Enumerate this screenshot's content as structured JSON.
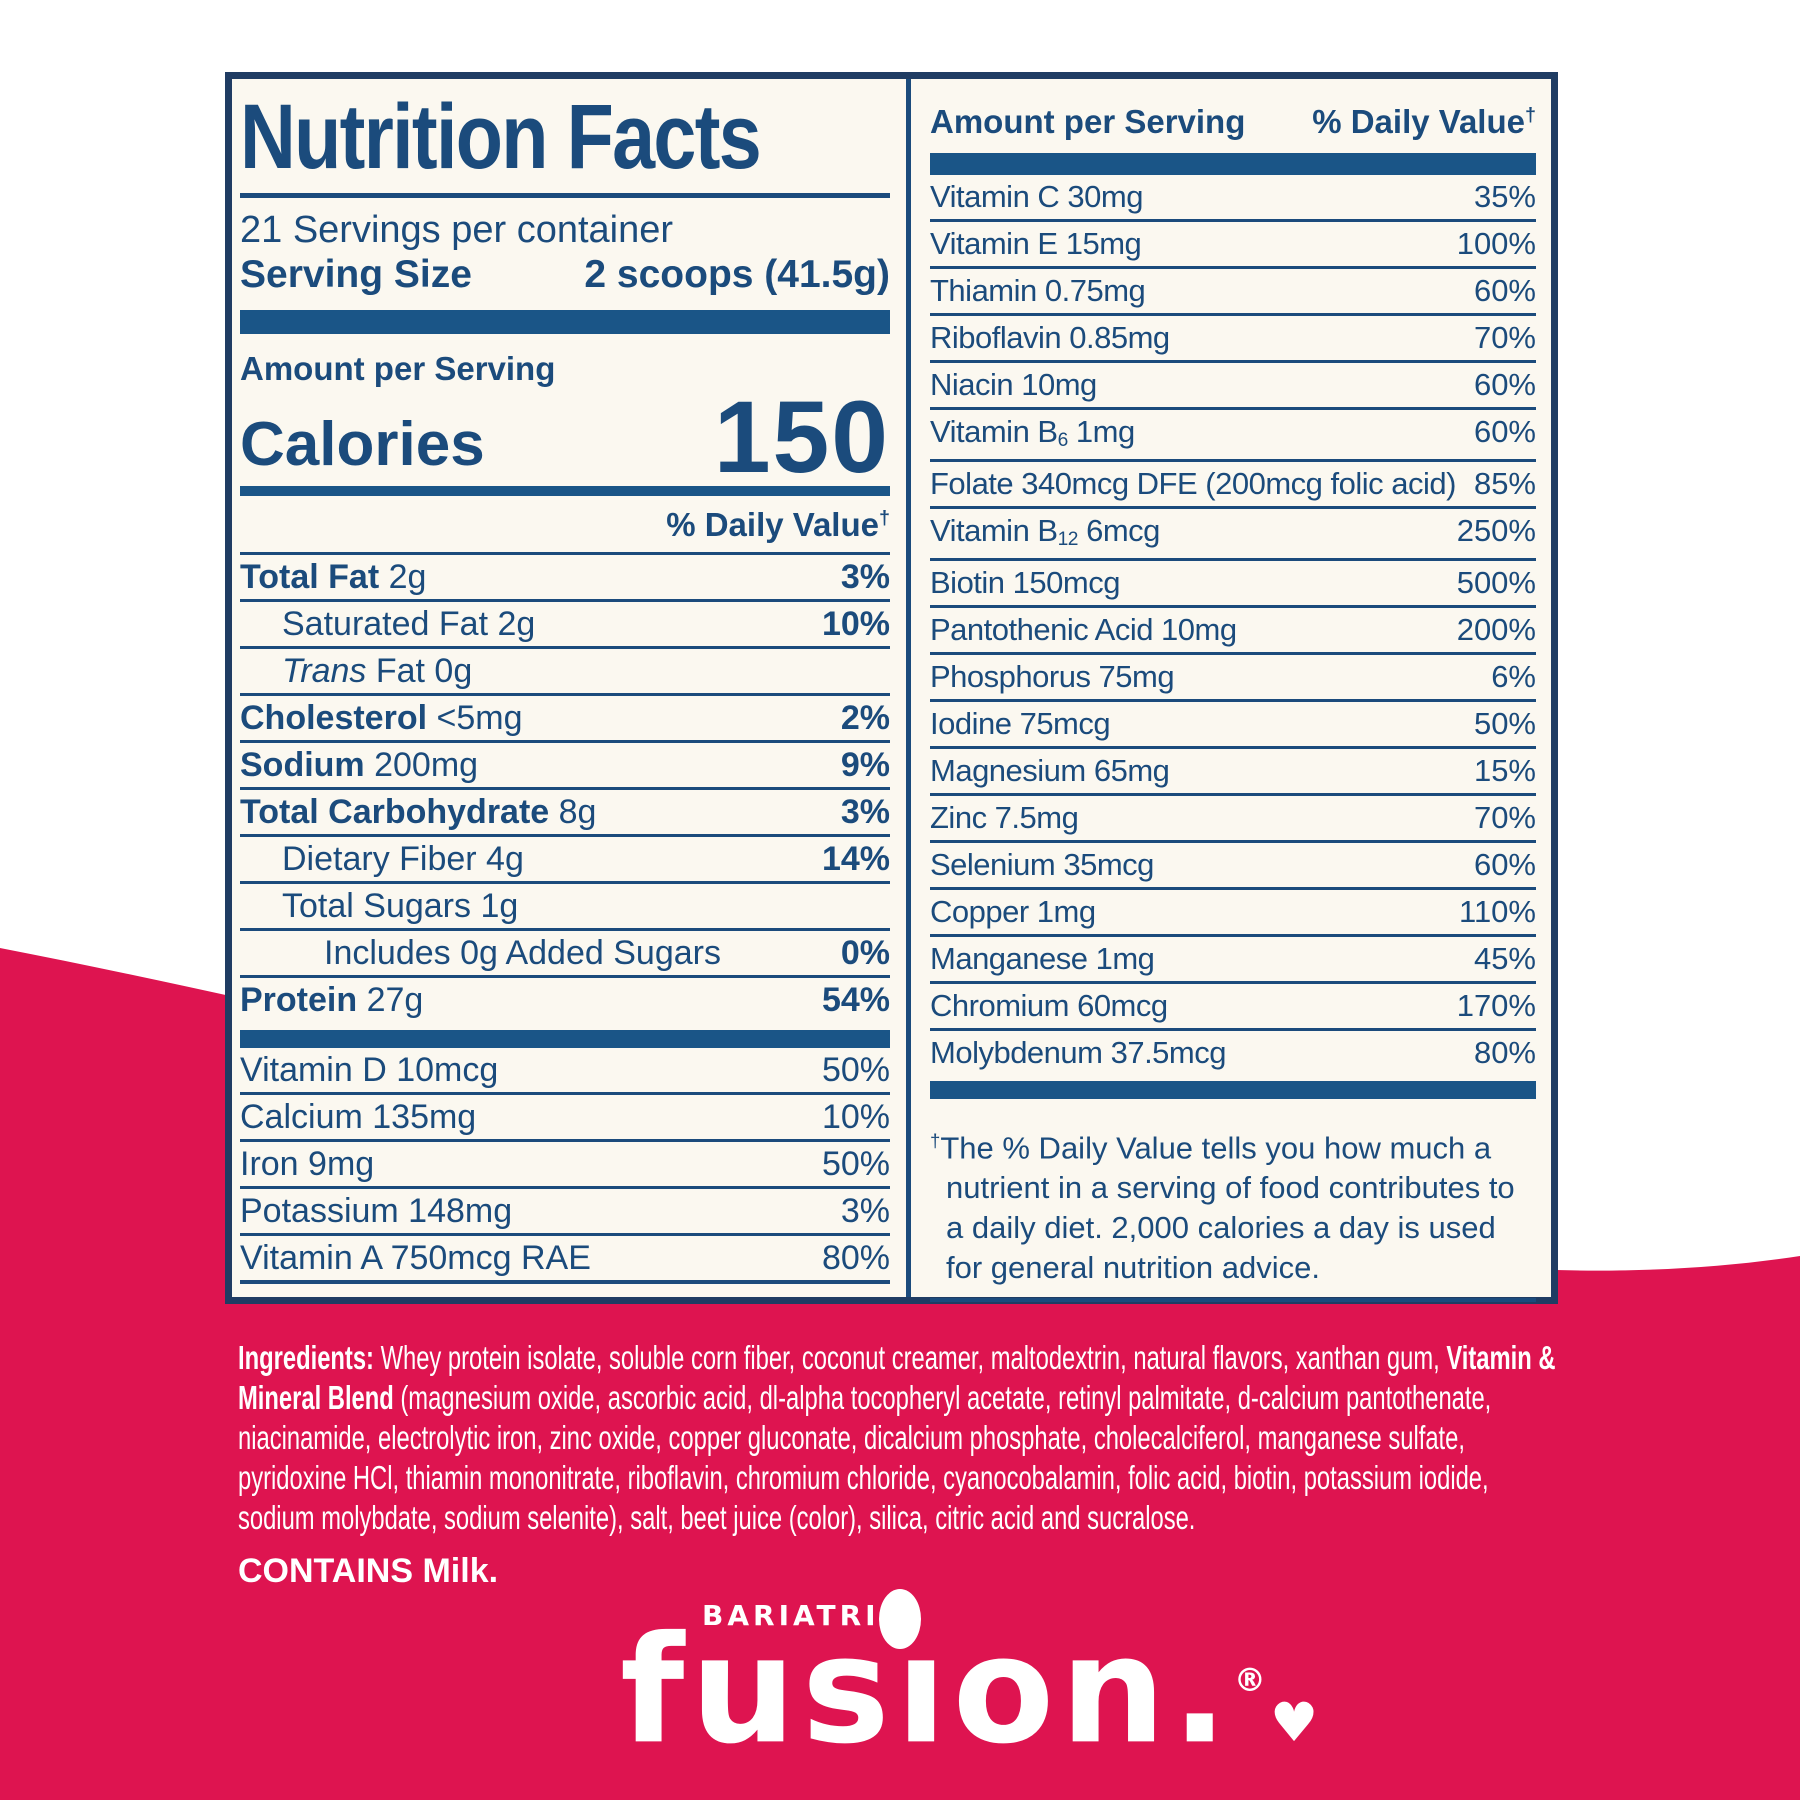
{
  "colors": {
    "blue_text": "#1b4b7c",
    "blue_bar": "#1a5587",
    "navy_border": "#1f3c63",
    "pink": "#de1450",
    "label_bg": "#fbf8f0",
    "white": "#ffffff"
  },
  "panel": {
    "title": "Nutrition Facts",
    "servings": "21 Servings per container",
    "serving_size": {
      "label": "Serving Size",
      "value": "2 scoops (41.5g)"
    },
    "amount_per_serving": "Amount per Serving",
    "calories": {
      "label": "Calories",
      "value": "150"
    },
    "daily_value": {
      "prefix": "% Daily Value",
      "dagger": "†"
    },
    "left_rows": [
      {
        "parts": [
          {
            "t": "Total Fat ",
            "s": "b"
          },
          {
            "t": "2g",
            "s": "r"
          }
        ],
        "pct": "3%",
        "pb": true
      },
      {
        "parts": [
          {
            "t": "Saturated Fat 2g",
            "s": "r"
          }
        ],
        "pct": "10%",
        "pb": true,
        "ind": 1
      },
      {
        "parts": [
          {
            "t": "Trans ",
            "s": "i"
          },
          {
            "t": "Fat 0g",
            "s": "r"
          }
        ],
        "pct": "",
        "ind": 1
      },
      {
        "parts": [
          {
            "t": "Cholesterol ",
            "s": "b"
          },
          {
            "t": "<5mg",
            "s": "r"
          }
        ],
        "pct": "2%",
        "pb": true
      },
      {
        "parts": [
          {
            "t": "Sodium ",
            "s": "b"
          },
          {
            "t": "200mg",
            "s": "r"
          }
        ],
        "pct": "9%",
        "pb": true
      },
      {
        "parts": [
          {
            "t": "Total Carbohydrate ",
            "s": "b"
          },
          {
            "t": "8g",
            "s": "r"
          }
        ],
        "pct": "3%",
        "pb": true
      },
      {
        "parts": [
          {
            "t": "Dietary Fiber 4g",
            "s": "r"
          }
        ],
        "pct": "14%",
        "pb": true,
        "ind": 1
      },
      {
        "parts": [
          {
            "t": "Total Sugars 1g",
            "s": "r"
          }
        ],
        "pct": "",
        "ind": 1
      },
      {
        "parts": [
          {
            "t": "Includes 0g Added Sugars",
            "s": "r"
          }
        ],
        "pct": "0%",
        "pb": true,
        "ind": 2
      },
      {
        "parts": [
          {
            "t": "Protein ",
            "s": "b"
          },
          {
            "t": "27g",
            "s": "r"
          }
        ],
        "pct": "54%",
        "pb": true
      }
    ],
    "left_vitamin_rows": [
      {
        "parts": [
          {
            "t": "Vitamin D 10mcg",
            "s": "r"
          }
        ],
        "pct": "50%"
      },
      {
        "parts": [
          {
            "t": "Calcium 135mg",
            "s": "r"
          }
        ],
        "pct": "10%"
      },
      {
        "parts": [
          {
            "t": "Iron 9mg",
            "s": "r"
          }
        ],
        "pct": "50%"
      },
      {
        "parts": [
          {
            "t": "Potassium 148mg",
            "s": "r"
          }
        ],
        "pct": "3%"
      },
      {
        "parts": [
          {
            "t": "Vitamin A 750mcg RAE",
            "s": "r"
          }
        ],
        "pct": "80%"
      }
    ],
    "right_header": {
      "left": "Amount per Serving",
      "right": "% Daily Value",
      "dagger": "†"
    },
    "right_rows": [
      {
        "parts": [
          {
            "t": "Vitamin C 30mg",
            "s": "r"
          }
        ],
        "pct": "35%"
      },
      {
        "parts": [
          {
            "t": "Vitamin E 15mg",
            "s": "r"
          }
        ],
        "pct": "100%"
      },
      {
        "parts": [
          {
            "t": "Thiamin 0.75mg",
            "s": "r"
          }
        ],
        "pct": "60%"
      },
      {
        "parts": [
          {
            "t": "Riboflavin 0.85mg",
            "s": "r"
          }
        ],
        "pct": "70%"
      },
      {
        "parts": [
          {
            "t": "Niacin 10mg",
            "s": "r"
          }
        ],
        "pct": "60%"
      },
      {
        "parts": [
          {
            "t": "Vitamin B",
            "s": "r"
          },
          {
            "t": "6",
            "s": "sub"
          },
          {
            "t": " 1mg",
            "s": "r"
          }
        ],
        "pct": "60%"
      },
      {
        "parts": [
          {
            "t": "Folate 340mcg DFE (200mcg folic acid)",
            "s": "r"
          }
        ],
        "pct": "85%"
      },
      {
        "parts": [
          {
            "t": "Vitamin B",
            "s": "r"
          },
          {
            "t": "12",
            "s": "sub"
          },
          {
            "t": " 6mcg",
            "s": "r"
          }
        ],
        "pct": "250%"
      },
      {
        "parts": [
          {
            "t": "Biotin 150mcg",
            "s": "r"
          }
        ],
        "pct": "500%"
      },
      {
        "parts": [
          {
            "t": "Pantothenic Acid 10mg",
            "s": "r"
          }
        ],
        "pct": "200%"
      },
      {
        "parts": [
          {
            "t": "Phosphorus 75mg",
            "s": "r"
          }
        ],
        "pct": "6%"
      },
      {
        "parts": [
          {
            "t": "Iodine 75mcg",
            "s": "r"
          }
        ],
        "pct": "50%"
      },
      {
        "parts": [
          {
            "t": "Magnesium 65mg",
            "s": "r"
          }
        ],
        "pct": "15%"
      },
      {
        "parts": [
          {
            "t": "Zinc 7.5mg",
            "s": "r"
          }
        ],
        "pct": "70%"
      },
      {
        "parts": [
          {
            "t": "Selenium 35mcg",
            "s": "r"
          }
        ],
        "pct": "60%"
      },
      {
        "parts": [
          {
            "t": "Copper 1mg",
            "s": "r"
          }
        ],
        "pct": "110%"
      },
      {
        "parts": [
          {
            "t": "Manganese 1mg",
            "s": "r"
          }
        ],
        "pct": "45%"
      },
      {
        "parts": [
          {
            "t": "Chromium 60mcg",
            "s": "r"
          }
        ],
        "pct": "170%"
      },
      {
        "parts": [
          {
            "t": "Molybdenum 37.5mcg",
            "s": "r"
          }
        ],
        "pct": "80%"
      }
    ],
    "footnote": {
      "dagger": "†",
      "text": "The % Daily Value tells you how much a nutrient in a serving of food contributes to a daily diet. 2,000 calories a day is used for general nutrition advice."
    }
  },
  "ingredients": {
    "label": "Ingredients:",
    "part1": "Whey protein isolate, soluble corn fiber, coconut creamer, maltodextrin, natural flavors, xanthan gum,",
    "blend_bold": "Vitamin & Mineral Blend",
    "part2": "(magnesium oxide, ascorbic acid, dl-alpha tocopheryl acetate, retinyl palmitate, d-calcium pantothenate, niacinamide, electrolytic iron, zinc oxide, copper gluconate, dicalcium phosphate, cholecalciferol, manganese sulfate, pyridoxine HCl, thiamin mononitrate, riboflavin, chromium chloride, cyanocobalamin, folic acid, biotin, potassium iodide, sodium molybdate, sodium selenite), salt, beet juice (color), silica, citric acid and sucralose."
  },
  "contains": "CONTAINS Milk.",
  "brand": {
    "top": "BARIATRIC",
    "main": "fusıon.",
    "reg": "®",
    "heart": "♥"
  }
}
